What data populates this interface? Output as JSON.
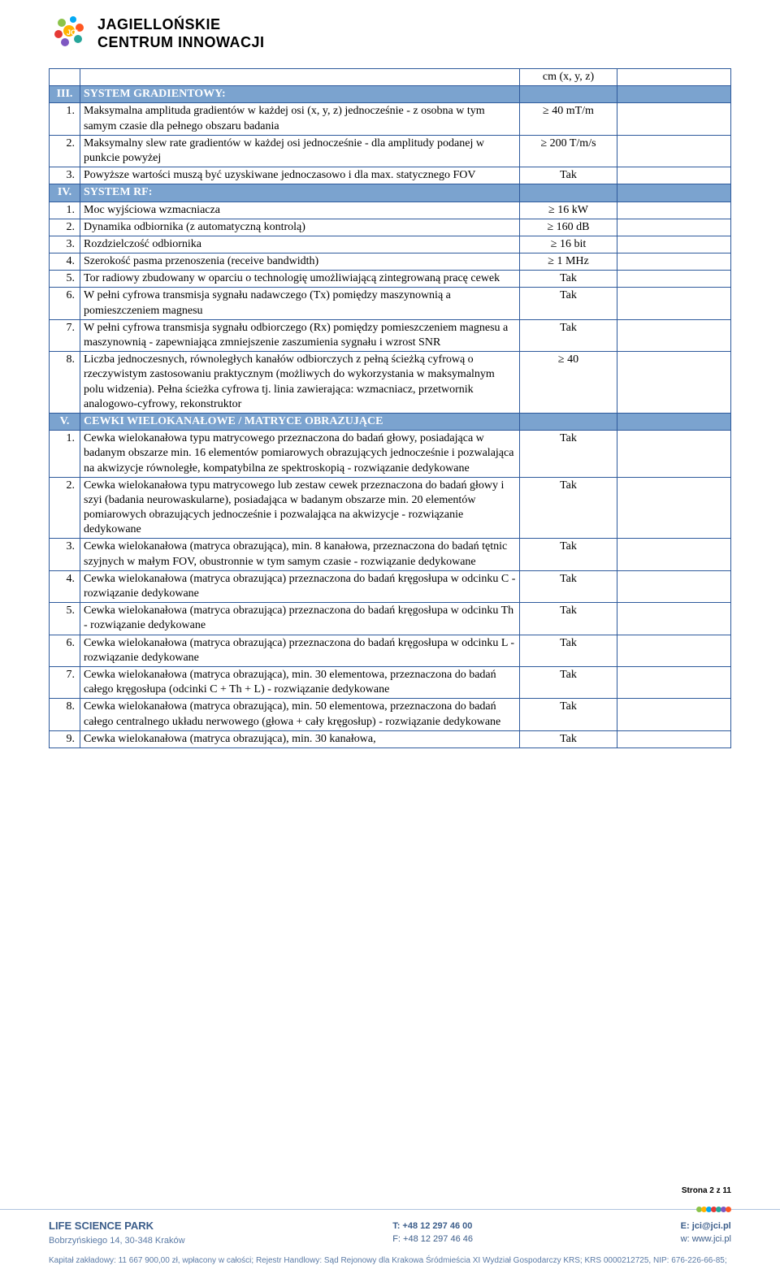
{
  "brand": {
    "line1": "JAGIELLOŃSKIE",
    "line2": "CENTRUM INNOWACJI"
  },
  "logo_colors": [
    "#8bc34a",
    "#03a9f4",
    "#ff5722",
    "#e53935",
    "#ffb300",
    "#26a69a",
    "#7e57c2"
  ],
  "top_cell": "cm (x, y, z)",
  "sections": {
    "III": {
      "num": "III.",
      "title": "SYSTEM GRADIENTOWY:"
    },
    "IV": {
      "num": "IV.",
      "title": "SYSTEM RF:"
    },
    "V": {
      "num": "V.",
      "title": "CEWKI WIELOKANAŁOWE / MATRYCE OBRAZUJĄCE"
    }
  },
  "III_rows": [
    {
      "n": "1.",
      "d": "Maksymalna amplituda gradientów w każdej osi (x, y, z) jednocześnie - z osobna w tym samym czasie dla pełnego obszaru badania",
      "v": "≥ 40 mT/m"
    },
    {
      "n": "2.",
      "d": "Maksymalny slew rate gradientów w każdej osi jednocześnie - dla amplitudy podanej w punkcie powyżej",
      "v": "≥ 200 T/m/s"
    },
    {
      "n": "3.",
      "d": "Powyższe wartości muszą być uzyskiwane jednoczasowo i dla max. statycznego FOV",
      "v": "Tak"
    }
  ],
  "IV_rows": [
    {
      "n": "1.",
      "d": "Moc wyjściowa wzmacniacza",
      "v": "≥ 16 kW"
    },
    {
      "n": "2.",
      "d": "Dynamika odbiornika (z automatyczną kontrolą)",
      "v": "≥ 160 dB"
    },
    {
      "n": "3.",
      "d": "Rozdzielczość odbiornika",
      "v": "≥ 16 bit"
    },
    {
      "n": "4.",
      "d": "Szerokość pasma przenoszenia (receive bandwidth)",
      "v": "≥ 1 MHz"
    },
    {
      "n": "5.",
      "d": "Tor radiowy zbudowany w oparciu o technologię umożliwiającą zintegrowaną pracę cewek",
      "v": "Tak"
    },
    {
      "n": "6.",
      "d": "W pełni cyfrowa transmisja sygnału nadawczego (Tx) pomiędzy maszynownią a pomieszczeniem magnesu",
      "v": "Tak"
    },
    {
      "n": "7.",
      "d": "W pełni cyfrowa transmisja sygnału odbiorczego (Rx) pomiędzy pomieszczeniem magnesu a maszynownią - zapewniająca zmniejszenie zaszumienia sygnału i wzrost SNR",
      "v": "Tak"
    },
    {
      "n": "8.",
      "d": "Liczba jednoczesnych, równoległych kanałów odbiorczych z pełną ścieżką cyfrową o rzeczywistym zastosowaniu praktycznym (możliwych do wykorzystania w maksymalnym polu widzenia). Pełna ścieżka cyfrowa tj. linia zawierająca: wzmacniacz, przetwornik analogowo-cyfrowy, rekonstruktor",
      "v": "≥ 40"
    }
  ],
  "V_rows": [
    {
      "n": "1.",
      "d": "Cewka wielokanałowa typu matrycowego przeznaczona do badań głowy, posiadająca w badanym obszarze min. 16 elementów pomiarowych obrazujących jednocześnie i pozwalająca na akwizycje równoległe, kompatybilna ze spektroskopią - rozwiązanie dedykowane",
      "v": "Tak"
    },
    {
      "n": "2.",
      "d": "Cewka wielokanałowa typu matrycowego lub zestaw cewek przeznaczona do badań głowy i szyi (badania neurowaskularne), posiadająca w badanym obszarze min. 20 elementów pomiarowych obrazujących jednocześnie i pozwalająca na akwizycje - rozwiązanie dedykowane",
      "v": "Tak"
    },
    {
      "n": "3.",
      "d": "Cewka wielokanałowa (matryca obrazująca), min. 8 kanałowa, przeznaczona do badań tętnic szyjnych w małym FOV, obustronnie w tym samym czasie - rozwiązanie dedykowane",
      "v": "Tak"
    },
    {
      "n": "4.",
      "d": "Cewka wielokanałowa (matryca obrazująca) przeznaczona do badań kręgosłupa w odcinku C - rozwiązanie dedykowane",
      "v": "Tak"
    },
    {
      "n": "5.",
      "d": "Cewka wielokanałowa (matryca obrazująca) przeznaczona do badań kręgosłupa w odcinku  Th - rozwiązanie dedykowane",
      "v": "Tak"
    },
    {
      "n": "6.",
      "d": "Cewka wielokanałowa (matryca obrazująca) przeznaczona do badań kręgosłupa w odcinku  L - rozwiązanie dedykowane",
      "v": "Tak"
    },
    {
      "n": "7.",
      "d": "Cewka wielokanałowa (matryca obrazująca), min. 30 elementowa, przeznaczona do badań całego kręgosłupa (odcinki C + Th + L) - rozwiązanie dedykowane",
      "v": "Tak"
    },
    {
      "n": "8.",
      "d": "Cewka wielokanałowa (matryca obrazująca), min. 50 elementowa, przeznaczona do badań całego centralnego układu nerwowego (głowa + cały kręgosłup) - rozwiązanie dedykowane",
      "v": "Tak"
    },
    {
      "n": "9.",
      "d": "Cewka wielokanałowa (matryca obrazująca), min. 30 kanałowa,",
      "v": "Tak"
    }
  ],
  "footer": {
    "page": "Strona 2 z 11",
    "park": "LIFE SCIENCE PARK",
    "addr": "Bobrzyńskiego 14, 30-348 Kraków",
    "tel": "T: +48 12 297 46 00",
    "fax": "F: +48 12 297 46 46",
    "email": "E: jci@jci.pl",
    "web": "w: www.jci.pl",
    "legal": "Kapitał zakładowy: 11 667 900,00 zł, wpłacony w całości;  Rejestr Handlowy: Sąd Rejonowy dla Krakowa Śródmieścia XI Wydział Gospodarczy KRS;  KRS 0000212725, NIP: 676-226-66-85;"
  },
  "dot_colors": [
    "#8bc34a",
    "#ffb300",
    "#03a9f4",
    "#e53935",
    "#26a69a",
    "#7e57c2",
    "#ff5722"
  ]
}
